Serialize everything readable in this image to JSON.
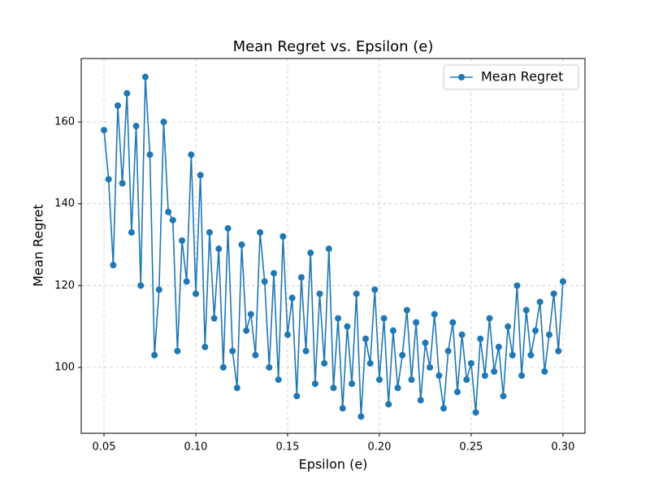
{
  "chart_data": {
    "type": "line",
    "title": "Mean Regret vs. Epsilon (e)",
    "x_label": "Epsilon (e)",
    "y_label": "Mean Regret",
    "x": [
      0.05,
      0.0525,
      0.055,
      0.0575,
      0.06,
      0.0625,
      0.065,
      0.0675,
      0.07,
      0.0725,
      0.075,
      0.0775,
      0.08,
      0.0825,
      0.085,
      0.0875,
      0.09,
      0.0925,
      0.095,
      0.0975,
      0.1,
      0.1025,
      0.105,
      0.1075,
      0.11,
      0.1125,
      0.115,
      0.1175,
      0.12,
      0.1225,
      0.125,
      0.1275,
      0.13,
      0.1325,
      0.135,
      0.1375,
      0.14,
      0.1425,
      0.145,
      0.1475,
      0.15,
      0.1525,
      0.155,
      0.1575,
      0.16,
      0.1625,
      0.165,
      0.1675,
      0.17,
      0.1725,
      0.175,
      0.1775,
      0.18,
      0.1825,
      0.185,
      0.1875,
      0.19,
      0.1925,
      0.195,
      0.1975,
      0.2,
      0.2025,
      0.205,
      0.2075,
      0.21,
      0.2125,
      0.215,
      0.2175,
      0.22,
      0.2225,
      0.225,
      0.2275,
      0.23,
      0.2325,
      0.235,
      0.2375,
      0.24,
      0.2425,
      0.245,
      0.2475,
      0.25,
      0.2525,
      0.255,
      0.2575,
      0.26,
      0.2625,
      0.265,
      0.2675,
      0.27,
      0.2725,
      0.275,
      0.2775,
      0.28,
      0.2825,
      0.285,
      0.2875,
      0.29,
      0.2925,
      0.295,
      0.2975,
      0.3
    ],
    "series": [
      {
        "name": "Mean Regret",
        "color": "#1f77b4",
        "values": [
          158,
          146,
          125,
          164,
          145,
          167,
          133,
          159,
          120,
          171,
          152,
          103,
          119,
          160,
          138,
          136,
          104,
          131,
          121,
          152,
          118,
          147,
          105,
          133,
          112,
          129,
          100,
          134,
          104,
          95,
          130,
          109,
          113,
          103,
          133,
          121,
          100,
          123,
          97,
          132,
          108,
          117,
          93,
          122,
          104,
          128,
          96,
          118,
          101,
          129,
          95,
          112,
          90,
          110,
          96,
          118,
          88,
          107,
          101,
          119,
          97,
          112,
          91,
          109,
          95,
          103,
          114,
          97,
          111,
          92,
          106,
          100,
          113,
          98,
          90,
          104,
          111,
          94,
          108,
          97,
          101,
          89,
          107,
          98,
          112,
          99,
          105,
          93,
          110,
          103,
          120,
          98,
          114,
          103,
          109,
          116,
          99,
          108,
          118,
          104,
          121
        ]
      }
    ],
    "xlim": [
      0.0376,
      0.312
    ],
    "ylim": [
      83.9,
      175.5
    ],
    "xticks": [
      {
        "value": 0.05,
        "label": "0.05"
      },
      {
        "value": 0.1,
        "label": "0.10"
      },
      {
        "value": 0.15,
        "label": "0.15"
      },
      {
        "value": 0.2,
        "label": "0.20"
      },
      {
        "value": 0.25,
        "label": "0.25"
      },
      {
        "value": 0.3,
        "label": "0.30"
      }
    ],
    "yticks": [
      100,
      120,
      140,
      160
    ],
    "grid": true,
    "legend": "upper right"
  }
}
